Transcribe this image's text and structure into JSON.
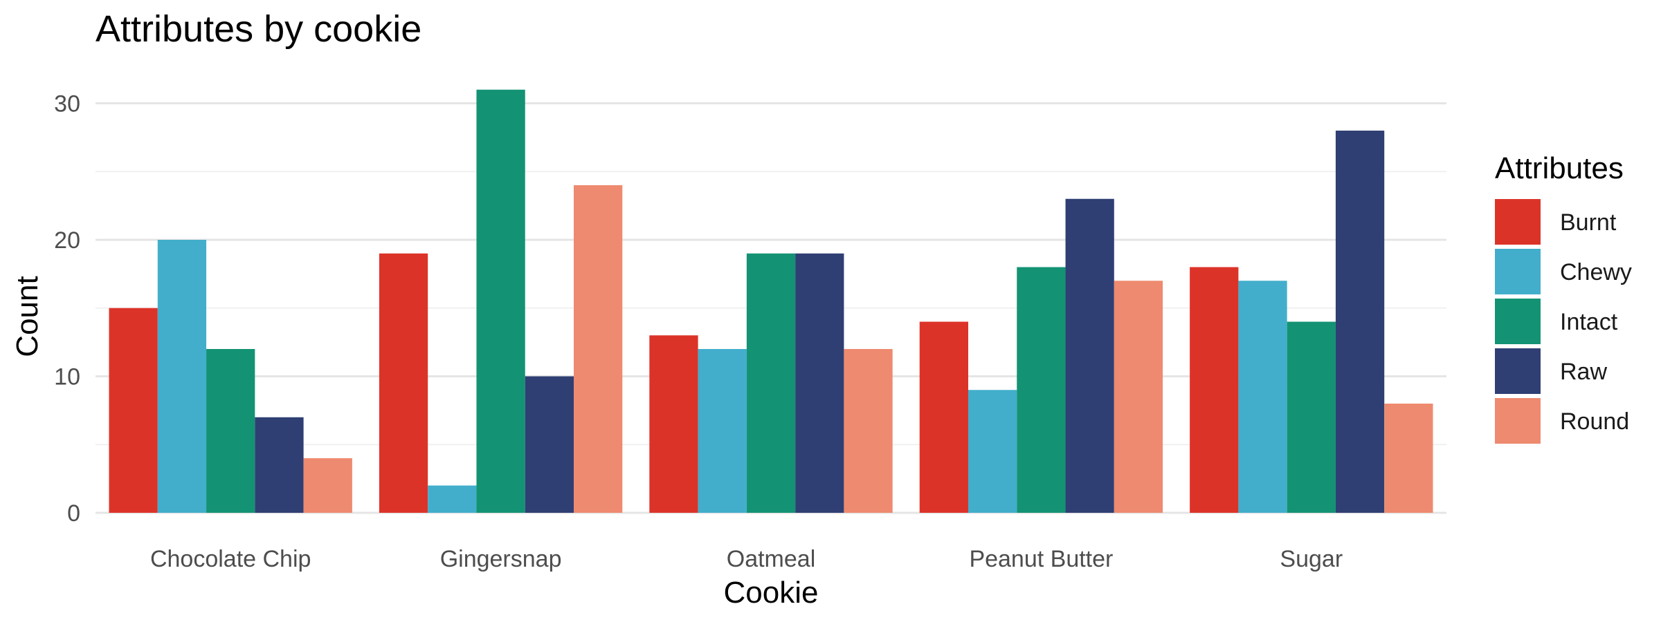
{
  "chart_data": {
    "type": "bar",
    "title": "Attributes by cookie",
    "xlabel": "Cookie",
    "ylabel": "Count",
    "categories": [
      "Chocolate Chip",
      "Gingersnap",
      "Oatmeal",
      "Peanut Butter",
      "Sugar"
    ],
    "series": [
      {
        "name": "Burnt",
        "color": "#dc3329",
        "values": [
          15,
          19,
          13,
          14,
          18
        ]
      },
      {
        "name": "Chewy",
        "color": "#42aecc",
        "values": [
          20,
          2,
          12,
          9,
          17
        ]
      },
      {
        "name": "Intact",
        "color": "#139373",
        "values": [
          12,
          31,
          19,
          18,
          14
        ]
      },
      {
        "name": "Raw",
        "color": "#2f3f74",
        "values": [
          7,
          10,
          19,
          23,
          28
        ]
      },
      {
        "name": "Round",
        "color": "#ee8a6f",
        "values": [
          4,
          24,
          12,
          17,
          8
        ]
      }
    ],
    "legend_title": "Attributes",
    "legend_position": "right",
    "ylim": [
      0,
      32
    ],
    "yticks": [
      0,
      10,
      20,
      30
    ],
    "grid": true
  }
}
